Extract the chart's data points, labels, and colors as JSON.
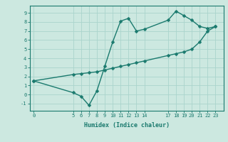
{
  "title": "",
  "xlabel": "Humidex (Indice chaleur)",
  "bg_color": "#cce8e0",
  "line_color": "#1a7a6e",
  "grid_color": "#aad4cc",
  "curve1_x": [
    0,
    5,
    6,
    7,
    8,
    9,
    10,
    11,
    12,
    13,
    14,
    17,
    18,
    19,
    20,
    21,
    22,
    23
  ],
  "curve1_y": [
    1.5,
    0.2,
    -0.2,
    -1.2,
    0.4,
    3.1,
    5.8,
    8.1,
    8.4,
    7.0,
    7.2,
    8.2,
    9.2,
    8.7,
    8.2,
    7.5,
    7.3,
    7.5
  ],
  "curve2_x": [
    0,
    5,
    6,
    7,
    8,
    9,
    10,
    11,
    12,
    13,
    14,
    17,
    18,
    19,
    20,
    21,
    22,
    23
  ],
  "curve2_y": [
    1.5,
    2.2,
    2.3,
    2.4,
    2.5,
    2.7,
    2.9,
    3.1,
    3.3,
    3.5,
    3.7,
    4.3,
    4.5,
    4.7,
    5.0,
    5.8,
    7.0,
    7.5
  ],
  "xticks": [
    0,
    5,
    6,
    7,
    8,
    9,
    10,
    11,
    12,
    13,
    14,
    17,
    18,
    19,
    20,
    21,
    22,
    23
  ],
  "yticks": [
    -1,
    0,
    1,
    2,
    3,
    4,
    5,
    6,
    7,
    8,
    9
  ],
  "xlim": [
    -0.5,
    24.0
  ],
  "ylim": [
    -1.8,
    9.8
  ],
  "markersize": 2.5,
  "linewidth": 1.0
}
